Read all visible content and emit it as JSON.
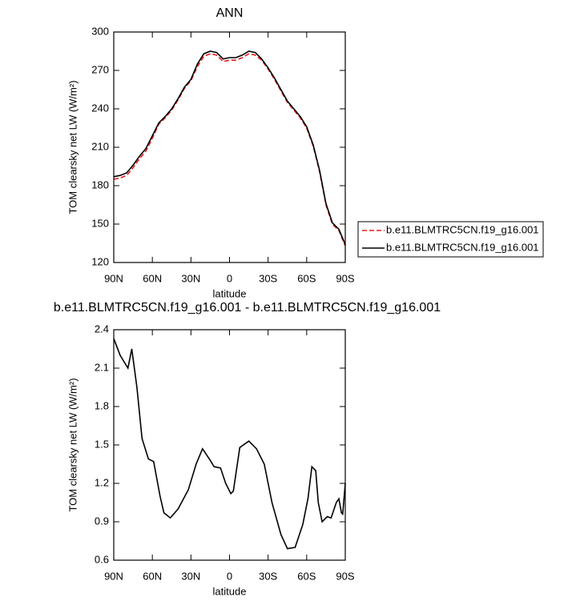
{
  "chart_data": [
    {
      "type": "line",
      "title": "ANN",
      "xlabel": "latitude",
      "ylabel": "TOM clearsky net LW (W/m²)",
      "x": [
        90,
        85,
        80,
        75,
        70,
        65,
        60,
        55,
        50,
        45,
        40,
        35,
        30,
        25,
        20,
        15,
        10,
        5,
        0,
        -5,
        -10,
        -15,
        -20,
        -25,
        -30,
        -35,
        -40,
        -45,
        -50,
        -55,
        -60,
        -65,
        -70,
        -75,
        -80,
        -85,
        -90
      ],
      "xlim": [
        90,
        -90
      ],
      "xticks": [
        {
          "value": 90,
          "label": "90N"
        },
        {
          "value": 60,
          "label": "60N"
        },
        {
          "value": 30,
          "label": "30N"
        },
        0,
        {
          "value": -30,
          "label": "30S"
        },
        {
          "value": -60,
          "label": "60S"
        },
        {
          "value": -90,
          "label": "90S"
        }
      ],
      "ylim": [
        120,
        300
      ],
      "yticks": [
        120,
        150,
        180,
        210,
        240,
        270,
        300
      ],
      "legend": "outside-right",
      "series": [
        {
          "name": "b.e11.BLMTRC5CN.f19_g16.001",
          "color": "#e41a1c",
          "dash": true,
          "values": [
            185,
            186,
            188,
            194,
            201,
            207,
            217,
            228,
            233,
            239,
            247,
            256,
            262,
            273,
            281,
            283,
            282,
            277,
            278,
            278,
            280,
            283,
            282,
            278,
            271,
            263,
            254,
            245,
            239,
            233,
            225,
            211,
            191,
            165,
            150,
            145,
            133
          ]
        },
        {
          "name": "b.e11.BLMTRC5CN.f19_g16.001",
          "color": "#000000",
          "dash": false,
          "values": [
            187,
            188,
            190,
            196,
            203,
            209,
            219,
            229,
            234,
            240,
            248,
            257,
            263,
            275,
            283,
            285,
            284,
            279,
            280,
            280,
            282,
            285,
            284,
            279,
            272,
            264,
            255,
            246,
            240,
            234,
            226,
            212,
            192,
            166,
            151,
            146,
            134
          ]
        }
      ]
    },
    {
      "type": "line",
      "title": "b.e11.BLMTRC5CN.f19_g16.001 - b.e11.BLMTRC5CN.f19_g16.001",
      "xlabel": "latitude",
      "ylabel": "TOM clearsky net LW (W/m²)",
      "x": [
        90,
        85,
        79,
        76,
        72,
        68,
        63,
        59,
        54,
        51,
        46,
        40,
        32,
        26,
        21,
        15,
        12,
        7,
        3,
        -1,
        -3,
        -8,
        -15,
        -21,
        -27,
        -33,
        -40,
        -45,
        -51,
        -57,
        -61,
        -64,
        -67,
        -69,
        -72,
        -76,
        -79,
        -83,
        -85,
        -87,
        -88,
        -90
      ],
      "xlim": [
        90,
        -90
      ],
      "xticks": [
        {
          "value": 90,
          "label": "90N"
        },
        {
          "value": 60,
          "label": "60N"
        },
        {
          "value": 30,
          "label": "30N"
        },
        0,
        {
          "value": -30,
          "label": "30S"
        },
        {
          "value": -60,
          "label": "60S"
        },
        {
          "value": -90,
          "label": "90S"
        }
      ],
      "ylim": [
        0.6,
        2.4
      ],
      "yticks": [
        0.6,
        0.9,
        1.2,
        1.5,
        1.8,
        2.1,
        2.4
      ],
      "series": [
        {
          "color": "#000000",
          "dash": false,
          "values": [
            2.33,
            2.2,
            2.1,
            2.25,
            1.95,
            1.55,
            1.39,
            1.37,
            1.1,
            0.97,
            0.93,
            1.0,
            1.15,
            1.35,
            1.47,
            1.38,
            1.33,
            1.32,
            1.2,
            1.12,
            1.14,
            1.48,
            1.53,
            1.47,
            1.35,
            1.05,
            0.8,
            0.69,
            0.7,
            0.88,
            1.08,
            1.33,
            1.3,
            1.05,
            0.9,
            0.94,
            0.93,
            1.05,
            1.08,
            0.97,
            0.96,
            1.2
          ]
        }
      ]
    }
  ]
}
